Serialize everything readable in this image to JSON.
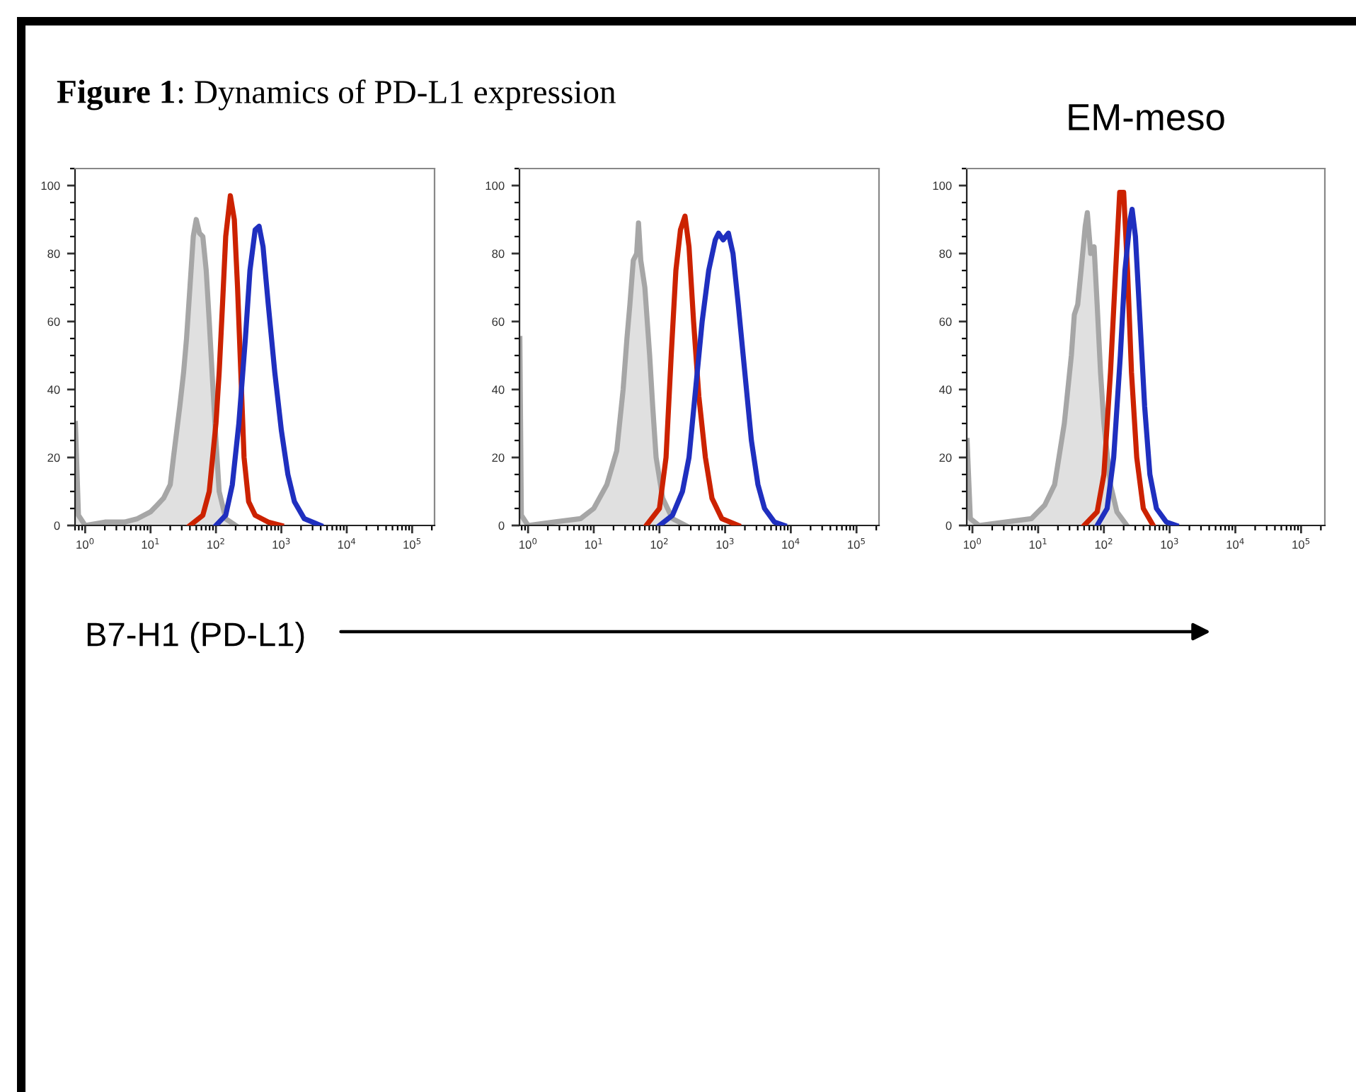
{
  "chart_data": [
    {
      "type": "line",
      "title": "Figure 1: Dynamics of PD-L1 expression",
      "annotations": [
        "B7-H1 (PD-L1)"
      ],
      "log": "x",
      "xlim": [
        0.7,
        220000
      ],
      "ylim": [
        0,
        105
      ],
      "xticks": [
        {
          "value": 1,
          "label": "10$^{0}$"
        },
        {
          "value": 10,
          "label": "10$^{1}$"
        },
        {
          "value": 100,
          "label": "10$^{2}$"
        },
        {
          "value": 1000,
          "label": "10$^{3}$"
        },
        {
          "value": 10000,
          "label": "10$^{4}$"
        },
        {
          "value": 100000,
          "label": "10$^{5}$"
        }
      ],
      "yticks": [
        0,
        20,
        40,
        60,
        80,
        100
      ],
      "series": [
        {
          "type": "area",
          "color": "#a6a6a6",
          "x": [
            0.71,
            0.79,
            1,
            2,
            4,
            6.3,
            10,
            12.6,
            15.8,
            20,
            22.4,
            28,
            32,
            35.5,
            40,
            45,
            50,
            56,
            63,
            71,
            79,
            89,
            100,
            112,
            141,
            200
          ],
          "values": [
            30,
            3,
            0,
            1,
            1,
            2,
            4,
            6,
            8,
            12,
            20,
            35,
            45,
            55,
            70,
            85,
            90,
            86,
            85,
            75,
            60,
            42,
            25,
            10,
            2,
            0
          ]
        },
        {
          "type": "line",
          "color": "#cc2200",
          "x": [
            40,
            63,
            79,
            100,
            112,
            126,
            141,
            166,
            191,
            214,
            240,
            269,
            316,
            398,
            631,
            1000
          ],
          "values": [
            0,
            3,
            10,
            30,
            45,
            65,
            85,
            97,
            90,
            70,
            45,
            20,
            7,
            3,
            1,
            0
          ]
        },
        {
          "type": "line",
          "color": "#1f2fbf",
          "x": [
            100,
            141,
            178,
            224,
            282,
            331,
            398,
            457,
            525,
            631,
            794,
            1000,
            1259,
            1585,
            2239,
            3981
          ],
          "values": [
            0,
            3,
            12,
            30,
            55,
            75,
            87,
            88,
            82,
            65,
            45,
            28,
            15,
            7,
            2,
            0
          ]
        }
      ]
    },
    {
      "type": "line",
      "log": "x",
      "xlim": [
        0.74,
        220000
      ],
      "ylim": [
        0,
        105
      ],
      "xticks": [
        {
          "value": 1,
          "label": "10$^{0}$"
        },
        {
          "value": 10,
          "label": "10$^{1}$"
        },
        {
          "value": 100,
          "label": "10$^{2}$"
        },
        {
          "value": 1000,
          "label": "10$^{3}$"
        },
        {
          "value": 10000,
          "label": "10$^{4}$"
        },
        {
          "value": 100000,
          "label": "10$^{5}$"
        }
      ],
      "yticks": [
        0,
        20,
        40,
        60,
        80,
        100
      ],
      "series": [
        {
          "type": "area",
          "color": "#a6a6a6",
          "x": [
            0.75,
            0.79,
            1,
            2.5,
            6.3,
            10,
            15.8,
            22.4,
            28,
            32,
            35.5,
            40,
            45,
            48,
            52,
            60,
            71,
            79,
            89,
            112,
            158,
            251
          ],
          "values": [
            55,
            3,
            0,
            1,
            2,
            5,
            12,
            22,
            40,
            55,
            65,
            78,
            80,
            89,
            78,
            70,
            50,
            35,
            20,
            8,
            2,
            0
          ]
        },
        {
          "type": "line",
          "color": "#cc2200",
          "x": [
            63,
            100,
            126,
            151,
            178,
            209,
            245,
            282,
            331,
            398,
            501,
            631,
            891,
            1585
          ],
          "values": [
            0,
            5,
            20,
            50,
            75,
            87,
            91,
            82,
            60,
            38,
            20,
            8,
            2,
            0
          ]
        },
        {
          "type": "line",
          "color": "#1f2fbf",
          "x": [
            100,
            158,
            224,
            282,
            355,
            447,
            562,
            708,
            794,
            933,
            1122,
            1318,
            1585,
            1995,
            2512,
            3162,
            3981,
            5623,
            7943
          ],
          "values": [
            0,
            3,
            10,
            20,
            40,
            60,
            75,
            84,
            86,
            84,
            86,
            80,
            65,
            45,
            25,
            12,
            5,
            1,
            0
          ]
        }
      ]
    },
    {
      "type": "line",
      "title": "EM-meso",
      "log": "x",
      "xlim": [
        0.82,
        230000
      ],
      "ylim": [
        0,
        105
      ],
      "xticks": [
        {
          "value": 1,
          "label": "10$^{0}$"
        },
        {
          "value": 10,
          "label": "10$^{1}$"
        },
        {
          "value": 100,
          "label": "10$^{2}$"
        },
        {
          "value": 1000,
          "label": "10$^{3}$"
        },
        {
          "value": 10000,
          "label": "10$^{4}$"
        },
        {
          "value": 100000,
          "label": "10$^{5}$"
        }
      ],
      "yticks": [
        0,
        20,
        40,
        60,
        80,
        100
      ],
      "series": [
        {
          "type": "area",
          "color": "#a6a6a6",
          "x": [
            0.83,
            0.93,
            1.26,
            3.2,
            7.9,
            12.6,
            17.8,
            25,
            32,
            35.5,
            40,
            45,
            52,
            56,
            63,
            71,
            79,
            89,
            100,
            126,
            158,
            224
          ],
          "values": [
            25,
            2,
            0,
            1,
            2,
            6,
            12,
            30,
            50,
            62,
            65,
            75,
            88,
            92,
            80,
            82,
            65,
            45,
            30,
            12,
            4,
            0
          ]
        },
        {
          "type": "line",
          "color": "#cc2200",
          "x": [
            50,
            79,
            100,
            126,
            151,
            174,
            200,
            229,
            263,
            316,
            398,
            562
          ],
          "values": [
            0,
            4,
            15,
            45,
            75,
            98,
            98,
            75,
            45,
            20,
            5,
            0
          ]
        },
        {
          "type": "line",
          "color": "#1f2fbf",
          "x": [
            79,
            112,
            141,
            178,
            209,
            251,
            269,
            302,
            355,
            417,
            501,
            631,
            891,
            1259
          ],
          "values": [
            0,
            5,
            20,
            50,
            75,
            90,
            93,
            85,
            60,
            35,
            15,
            5,
            1,
            0
          ]
        }
      ]
    }
  ]
}
